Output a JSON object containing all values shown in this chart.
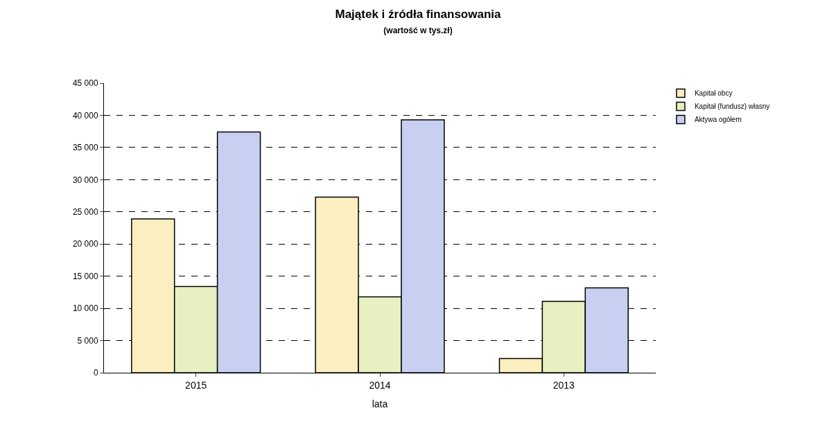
{
  "chart_data": {
    "type": "bar",
    "title": "Majątek i źródła finansowania",
    "subtitle": "(wartość w tys.zł)",
    "xlabel": "lata",
    "categories": [
      "2015",
      "2014",
      "2013"
    ],
    "series": [
      {
        "name": "Kapitał obcy",
        "color": "#fbeec0",
        "values": [
          23900,
          27300,
          2200
        ]
      },
      {
        "name": "Kapitał (fundusz) własny",
        "color": "#e6f0c0",
        "values": [
          13400,
          11800,
          11100
        ]
      },
      {
        "name": "Aktywa ogółem",
        "color": "#c8cff0",
        "values": [
          37400,
          39300,
          13200
        ]
      }
    ],
    "ylim": [
      0,
      45000
    ],
    "yticks": [
      {
        "value": 0,
        "label": "0"
      },
      {
        "value": 5000,
        "label": "5 000"
      },
      {
        "value": 10000,
        "label": "10 000"
      },
      {
        "value": 15000,
        "label": "15 000"
      },
      {
        "value": 20000,
        "label": "20 000"
      },
      {
        "value": 25000,
        "label": "25 000"
      },
      {
        "value": 30000,
        "label": "30 000"
      },
      {
        "value": 35000,
        "label": "35 000"
      },
      {
        "value": 40000,
        "label": "40 000"
      },
      {
        "value": 45000,
        "label": "45 000"
      }
    ],
    "grid": "y",
    "legend": "right"
  }
}
